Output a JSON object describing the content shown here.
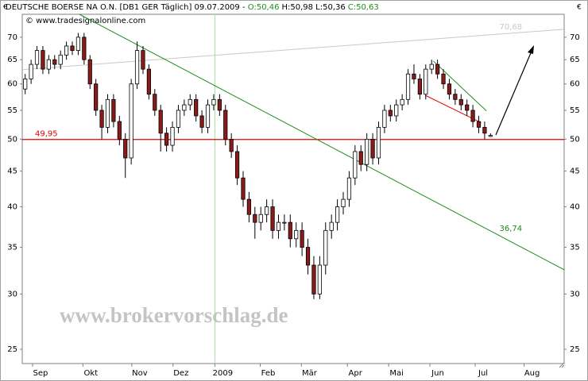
{
  "chart_data": {
    "type": "candlestick",
    "title": "DEUTSCHE BOERSE NA O.N. [DB1 GER  Täglich] 09.07.2009 - ",
    "header_open": "O:50,46",
    "header_hl": "H:50,98 L:50,36",
    "header_close": "C:50,63",
    "source": "© www.tradesignalonline.com",
    "currency": "€",
    "watermark": "www.brokervorschlag.de",
    "log_scale": true,
    "ylim": [
      23.85,
      75.5
    ],
    "yticks": [
      25,
      30,
      35,
      40,
      45,
      50,
      55,
      60,
      65,
      70
    ],
    "xlim": [
      0,
      92
    ],
    "xticks": [
      {
        "value": 1.75,
        "label": "Sep"
      },
      {
        "value": 10.3,
        "label": "Okt"
      },
      {
        "value": 18.6,
        "label": "Nov"
      },
      {
        "value": 25.6,
        "label": "Dez"
      },
      {
        "value": 32.7,
        "label": "2009"
      },
      {
        "value": 40.4,
        "label": "Feb"
      },
      {
        "value": 47.4,
        "label": "Mär"
      },
      {
        "value": 55.2,
        "label": "Apr"
      },
      {
        "value": 62.2,
        "label": "Mai"
      },
      {
        "value": 69.2,
        "label": "Jun"
      },
      {
        "value": 76.9,
        "label": "Jul"
      },
      {
        "value": 85.2,
        "label": "Aug"
      }
    ],
    "up_color": "#ffffff",
    "down_color": "#8b1a1a",
    "open": [
      59,
      61,
      64,
      67,
      63,
      65,
      64,
      66,
      68,
      67,
      70,
      65,
      60,
      55,
      52,
      57,
      53,
      50,
      47,
      60,
      67,
      63,
      58,
      55,
      51,
      49,
      52,
      55,
      56,
      57,
      54,
      52,
      56,
      57,
      55,
      50,
      48,
      44,
      41,
      39,
      38,
      39,
      40,
      37,
      38,
      38,
      36,
      37,
      35,
      33,
      30,
      33,
      37,
      38,
      40,
      41,
      44,
      48,
      46,
      50,
      47,
      52,
      55,
      54,
      56,
      57,
      62,
      61,
      58,
      63,
      64,
      62,
      60,
      58,
      57,
      56,
      55,
      53,
      52,
      50.46
    ],
    "high": [
      62,
      65,
      68,
      68,
      66,
      66,
      67,
      69,
      69,
      71,
      71,
      66,
      61,
      56,
      58,
      58,
      54,
      51,
      61,
      69,
      68,
      64,
      59,
      56,
      52,
      53,
      56,
      57,
      58,
      58,
      55,
      57,
      58,
      58,
      56,
      51,
      49,
      45,
      42,
      40,
      40,
      41,
      41,
      39,
      39,
      39,
      38,
      38,
      36,
      34,
      34,
      38,
      39,
      41,
      42,
      45,
      49,
      49,
      51,
      51,
      53,
      56,
      56,
      57,
      58,
      63,
      64,
      62,
      64,
      65,
      65,
      63,
      61,
      59,
      58,
      57,
      56,
      54,
      53,
      50.98
    ],
    "low": [
      58,
      60,
      63,
      62,
      62,
      63,
      63,
      65,
      66,
      66,
      64,
      59,
      54,
      50,
      51,
      52,
      49,
      44,
      46,
      59,
      62,
      57,
      54,
      48,
      48,
      48,
      51,
      54,
      55,
      53,
      51,
      51,
      55,
      54,
      49,
      47,
      43,
      40,
      38,
      36,
      37,
      38,
      36,
      36,
      37,
      35,
      35,
      34,
      32,
      29.5,
      29.5,
      32,
      36,
      37,
      39,
      40,
      43,
      45,
      45,
      46,
      46,
      51,
      53,
      53,
      55,
      56,
      60,
      57,
      57,
      62,
      61,
      59,
      57,
      56,
      55,
      54,
      52,
      51,
      50,
      50.36
    ],
    "close": [
      61,
      64,
      67,
      63,
      65,
      64,
      66,
      68,
      67,
      70,
      65,
      60,
      55,
      52,
      57,
      53,
      50,
      47,
      60,
      67,
      63,
      58,
      55,
      51,
      49,
      52,
      55,
      56,
      57,
      54,
      52,
      56,
      57,
      55,
      50,
      48,
      44,
      41,
      39,
      38,
      39,
      40,
      37,
      38,
      38,
      36,
      37,
      35,
      33,
      30,
      33,
      37,
      38,
      40,
      41,
      44,
      48,
      46,
      50,
      47,
      52,
      55,
      54,
      56,
      57,
      62,
      61,
      58,
      63,
      64,
      62,
      60,
      58,
      57,
      56,
      55,
      53,
      52,
      51,
      50.63
    ],
    "level": {
      "value": 49.95,
      "label": "49,95",
      "color": "#e00000"
    },
    "trendlines": [
      {
        "label": "70,68",
        "color": "#c8c8c8",
        "x": [
          0,
          92
        ],
        "y": [
          62.9,
          71.85
        ]
      },
      {
        "label": "36,74",
        "color": "#1e8c1e",
        "x": [
          9.7,
          92
        ],
        "y": [
          75.5,
          32.5
        ]
      },
      {
        "color": "#1e8c1e",
        "x": [
          69.8,
          78.8
        ],
        "y": [
          64.7,
          54.9
        ]
      },
      {
        "color": "#e00000",
        "x": [
          68.4,
          77.9
        ],
        "y": [
          57.8,
          52.8
        ]
      }
    ]
  }
}
